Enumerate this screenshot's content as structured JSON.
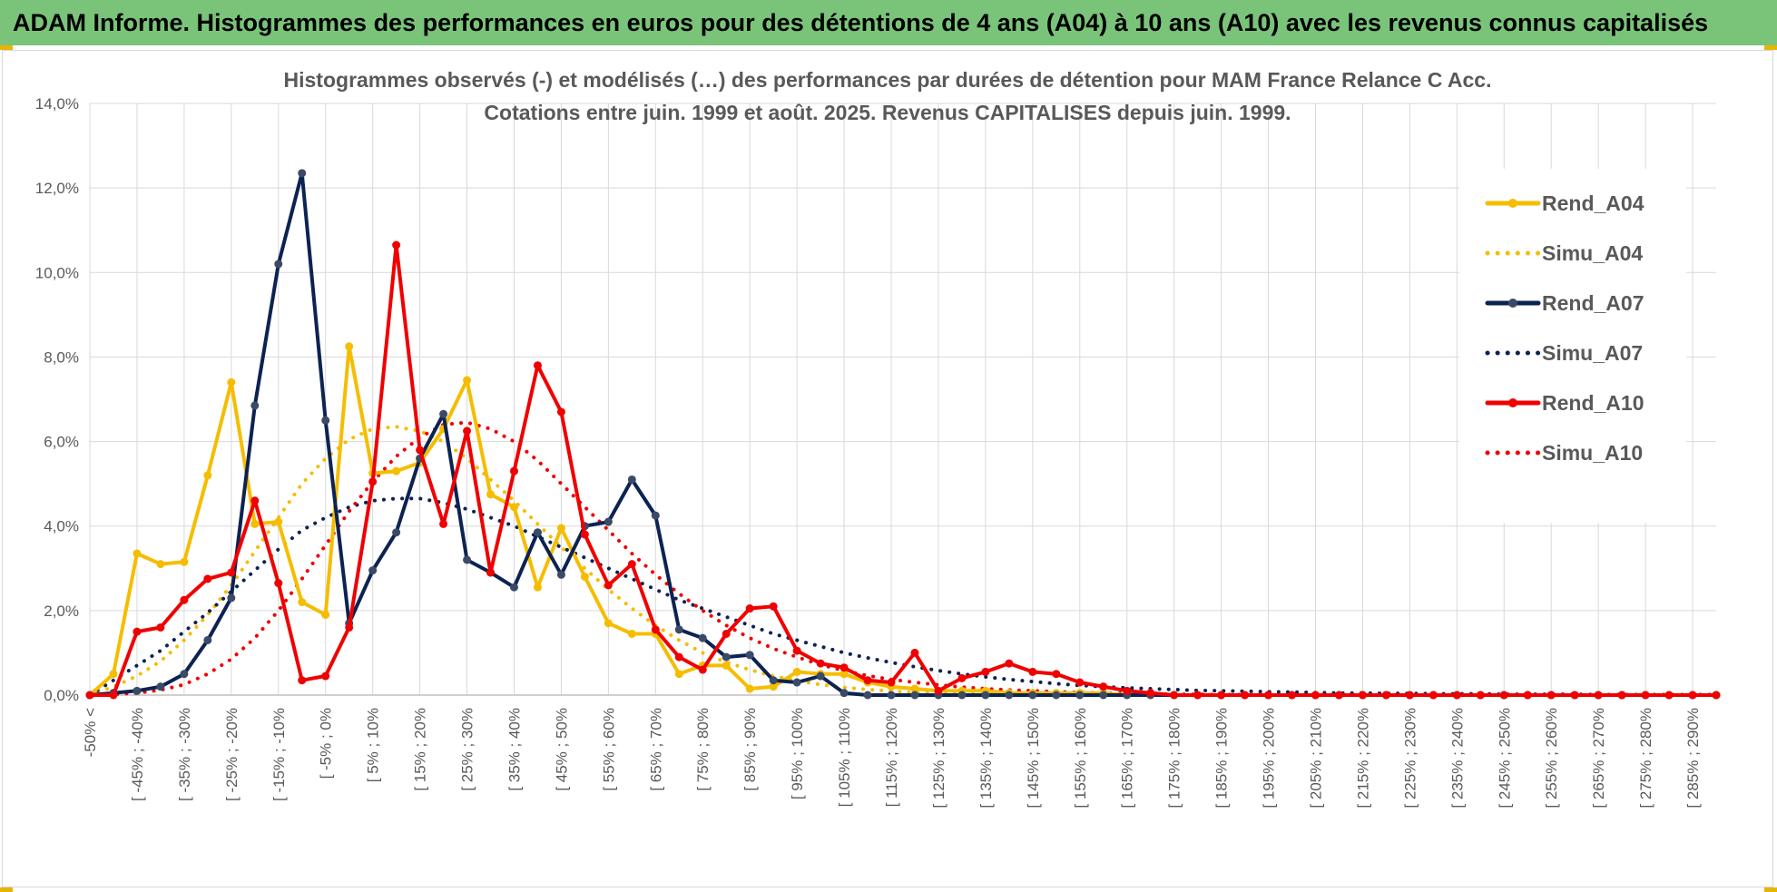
{
  "header": {
    "title": "ADAM Informe. Histogrammes des performances en euros pour des détentions de 4 ans (A04) à 10 ans (A10) avec les revenus connus capitalisés"
  },
  "colors": {
    "banner": "#7ac47a",
    "accent_corner": "#e8b400",
    "rend_a04": "#f5bd00",
    "rend_a07": "#0c2352",
    "rend_a07_marker": "#3b4a66",
    "rend_a10": "#f00000",
    "grid": "#d9d9d9"
  },
  "chart_data": {
    "type": "line",
    "title": "Histogrammes observés (-) et modélisés (…) des performances par durées de détention pour MAM France Relance C Acc.",
    "subtitle": "Cotations entre juin. 1999 et août. 2025. Revenus CAPITALISES depuis juin. 1999.",
    "xlabel": "",
    "ylabel": "",
    "ylim": [
      0,
      14
    ],
    "y_ticks": [
      "0,0%",
      "2,0%",
      "4,0%",
      "6,0%",
      "8,0%",
      "10,0%",
      "12,0%",
      "14,0%"
    ],
    "grid": true,
    "legend_position": "right",
    "categories": [
      "-50% <",
      "",
      "[ -45% ; -40%",
      "",
      "[ -35% ; -30%",
      "",
      "[ -25% ; -20%",
      "",
      "[ -15% ; -10%",
      "",
      "[ -5% ; 0%",
      "",
      "[ 5% ; 10%",
      "",
      "[ 15% ; 20%",
      "",
      "[ 25% ; 30%",
      "",
      "[ 35% ; 40%",
      "",
      "[ 45% ; 50%",
      "",
      "[ 55% ; 60%",
      "",
      "[ 65% ; 70%",
      "",
      "[ 75% ; 80%",
      "",
      "[ 85% ; 90%",
      "",
      "[ 95% ; 100%",
      "",
      "[ 105% ; 110%",
      "",
      "[ 115% ; 120%",
      "",
      "[ 125% ; 130%",
      "",
      "[ 135% ; 140%",
      "",
      "[ 145% ; 150%",
      "",
      "[ 155% ; 160%",
      "",
      "[ 165% ; 170%",
      "",
      "[ 175% ; 180%",
      "",
      "[ 185% ; 190%",
      "",
      "[ 195% ; 200%",
      "",
      "[ 205% ; 210%",
      "",
      "[ 215% ; 220%",
      "",
      "[ 225% ; 230%",
      "",
      "[ 235% ; 240%",
      "",
      "[ 245% ; 250%",
      "",
      "[ 255% ; 260%",
      "",
      "[ 265% ; 270%",
      "",
      "[ 275% ; 280%",
      "",
      "[ 285% ; 290%",
      ""
    ],
    "series": [
      {
        "name": "Rend_A04",
        "style": "solid",
        "color": "#f5bd00",
        "marker": true,
        "values": [
          0.0,
          0.5,
          3.35,
          3.1,
          3.15,
          5.2,
          7.4,
          4.05,
          4.1,
          2.2,
          1.9,
          8.25,
          5.25,
          5.3,
          5.5,
          6.3,
          7.45,
          4.75,
          4.45,
          2.55,
          3.95,
          2.8,
          1.7,
          1.45,
          1.45,
          0.5,
          0.7,
          0.7,
          0.15,
          0.2,
          0.55,
          0.5,
          0.5,
          0.3,
          0.2,
          0.15,
          0.1,
          0.1,
          0.1,
          0.05,
          0.05,
          0.05,
          0.05,
          0.05,
          0.0,
          0.0,
          0.0,
          0.0,
          0.0,
          0.0,
          0.0,
          0.0,
          0.0,
          0.0,
          0.0,
          0.0,
          0.0,
          0.0,
          0.0,
          0.0,
          0.0,
          0.0,
          0.0,
          0.0,
          0.0,
          0.0,
          0.0,
          0.0,
          0.0,
          0.0
        ]
      },
      {
        "name": "Simu_A04",
        "style": "dotted",
        "color": "#f5bd00",
        "marker": false,
        "values": [
          0.0,
          0.2,
          0.45,
          0.8,
          1.3,
          1.9,
          2.6,
          3.4,
          4.2,
          5.0,
          5.6,
          6.05,
          6.3,
          6.35,
          6.25,
          6.0,
          5.6,
          5.1,
          4.6,
          4.05,
          3.5,
          3.0,
          2.5,
          2.05,
          1.65,
          1.3,
          1.0,
          0.78,
          0.6,
          0.45,
          0.34,
          0.25,
          0.18,
          0.13,
          0.09,
          0.06,
          0.04,
          0.03,
          0.02,
          0.01,
          0.01,
          0.0,
          0.0,
          0.0,
          0.0,
          0.0,
          0.0,
          0.0,
          0.0,
          0.0,
          0.0,
          0.0,
          0.0,
          0.0,
          0.0,
          0.0,
          0.0,
          0.0,
          0.0,
          0.0,
          0.0,
          0.0,
          0.0,
          0.0,
          0.0,
          0.0,
          0.0,
          0.0,
          0.0,
          0.0
        ]
      },
      {
        "name": "Rend_A07",
        "style": "solid",
        "color": "#0c2352",
        "marker": true,
        "values": [
          0.0,
          0.05,
          0.1,
          0.2,
          0.5,
          1.3,
          2.3,
          6.85,
          10.2,
          12.35,
          6.5,
          1.7,
          2.95,
          3.85,
          5.6,
          6.65,
          3.2,
          2.9,
          2.55,
          3.85,
          2.85,
          4.0,
          4.1,
          5.1,
          4.25,
          1.55,
          1.35,
          0.9,
          0.95,
          0.35,
          0.3,
          0.45,
          0.05,
          0.0,
          0.0,
          0.0,
          0.0,
          0.0,
          0.0,
          0.0,
          0.0,
          0.0,
          0.0,
          0.0,
          0.0,
          0.0,
          0.0,
          0.0,
          0.0,
          0.0,
          0.0,
          0.0,
          0.0,
          0.0,
          0.0,
          0.0,
          0.0,
          0.0,
          0.0,
          0.0,
          0.0,
          0.0,
          0.0,
          0.0,
          0.0,
          0.0,
          0.0,
          0.0,
          0.0,
          0.0
        ]
      },
      {
        "name": "Simu_A07",
        "style": "dotted",
        "color": "#0c2352",
        "marker": false,
        "values": [
          0.0,
          0.35,
          0.7,
          1.05,
          1.5,
          1.95,
          2.45,
          2.95,
          3.45,
          3.9,
          4.2,
          4.45,
          4.6,
          4.65,
          4.65,
          4.55,
          4.4,
          4.2,
          4.0,
          3.75,
          3.5,
          3.25,
          3.0,
          2.75,
          2.5,
          2.25,
          2.05,
          1.85,
          1.65,
          1.45,
          1.3,
          1.15,
          1.0,
          0.88,
          0.77,
          0.67,
          0.58,
          0.5,
          0.43,
          0.37,
          0.32,
          0.27,
          0.23,
          0.2,
          0.17,
          0.15,
          0.13,
          0.11,
          0.1,
          0.09,
          0.08,
          0.07,
          0.06,
          0.05,
          0.05,
          0.04,
          0.04,
          0.03,
          0.03,
          0.03,
          0.02,
          0.02,
          0.02,
          0.02,
          0.01,
          0.01,
          0.01,
          0.01,
          0.01,
          0.01
        ]
      },
      {
        "name": "Rend_A10",
        "style": "solid",
        "color": "#f00000",
        "marker": true,
        "values": [
          0.0,
          0.0,
          1.5,
          1.6,
          2.25,
          2.75,
          2.9,
          4.6,
          2.65,
          0.35,
          0.45,
          1.6,
          5.05,
          10.65,
          5.8,
          4.05,
          6.25,
          2.9,
          5.3,
          7.8,
          6.7,
          3.8,
          2.6,
          3.1,
          1.55,
          0.9,
          0.6,
          1.45,
          2.05,
          2.1,
          1.05,
          0.75,
          0.65,
          0.35,
          0.3,
          1.0,
          0.1,
          0.4,
          0.55,
          0.75,
          0.55,
          0.5,
          0.3,
          0.2,
          0.1,
          0.05,
          0.0,
          0.0,
          0.0,
          0.0,
          0.0,
          0.0,
          0.0,
          0.0,
          0.0,
          0.0,
          0.0,
          0.0,
          0.0,
          0.0,
          0.0,
          0.0,
          0.0,
          0.0,
          0.0,
          0.0,
          0.0,
          0.0,
          0.0,
          0.0
        ]
      },
      {
        "name": "Simu_A10",
        "style": "dotted",
        "color": "#f00000",
        "marker": false,
        "values": [
          0.0,
          0.02,
          0.05,
          0.12,
          0.25,
          0.5,
          0.85,
          1.35,
          2.0,
          2.75,
          3.55,
          4.35,
          5.05,
          5.65,
          6.1,
          6.4,
          6.45,
          6.3,
          6.0,
          5.55,
          5.0,
          4.45,
          3.9,
          3.35,
          2.85,
          2.4,
          2.0,
          1.65,
          1.35,
          1.1,
          0.9,
          0.72,
          0.58,
          0.46,
          0.37,
          0.3,
          0.24,
          0.19,
          0.15,
          0.12,
          0.1,
          0.08,
          0.06,
          0.05,
          0.04,
          0.03,
          0.02,
          0.02,
          0.01,
          0.01,
          0.0,
          0.0,
          0.0,
          0.0,
          0.0,
          0.0,
          0.0,
          0.0,
          0.0,
          0.0,
          0.0,
          0.0,
          0.0,
          0.0,
          0.0,
          0.0,
          0.0,
          0.0,
          0.0,
          0.0
        ]
      }
    ]
  }
}
